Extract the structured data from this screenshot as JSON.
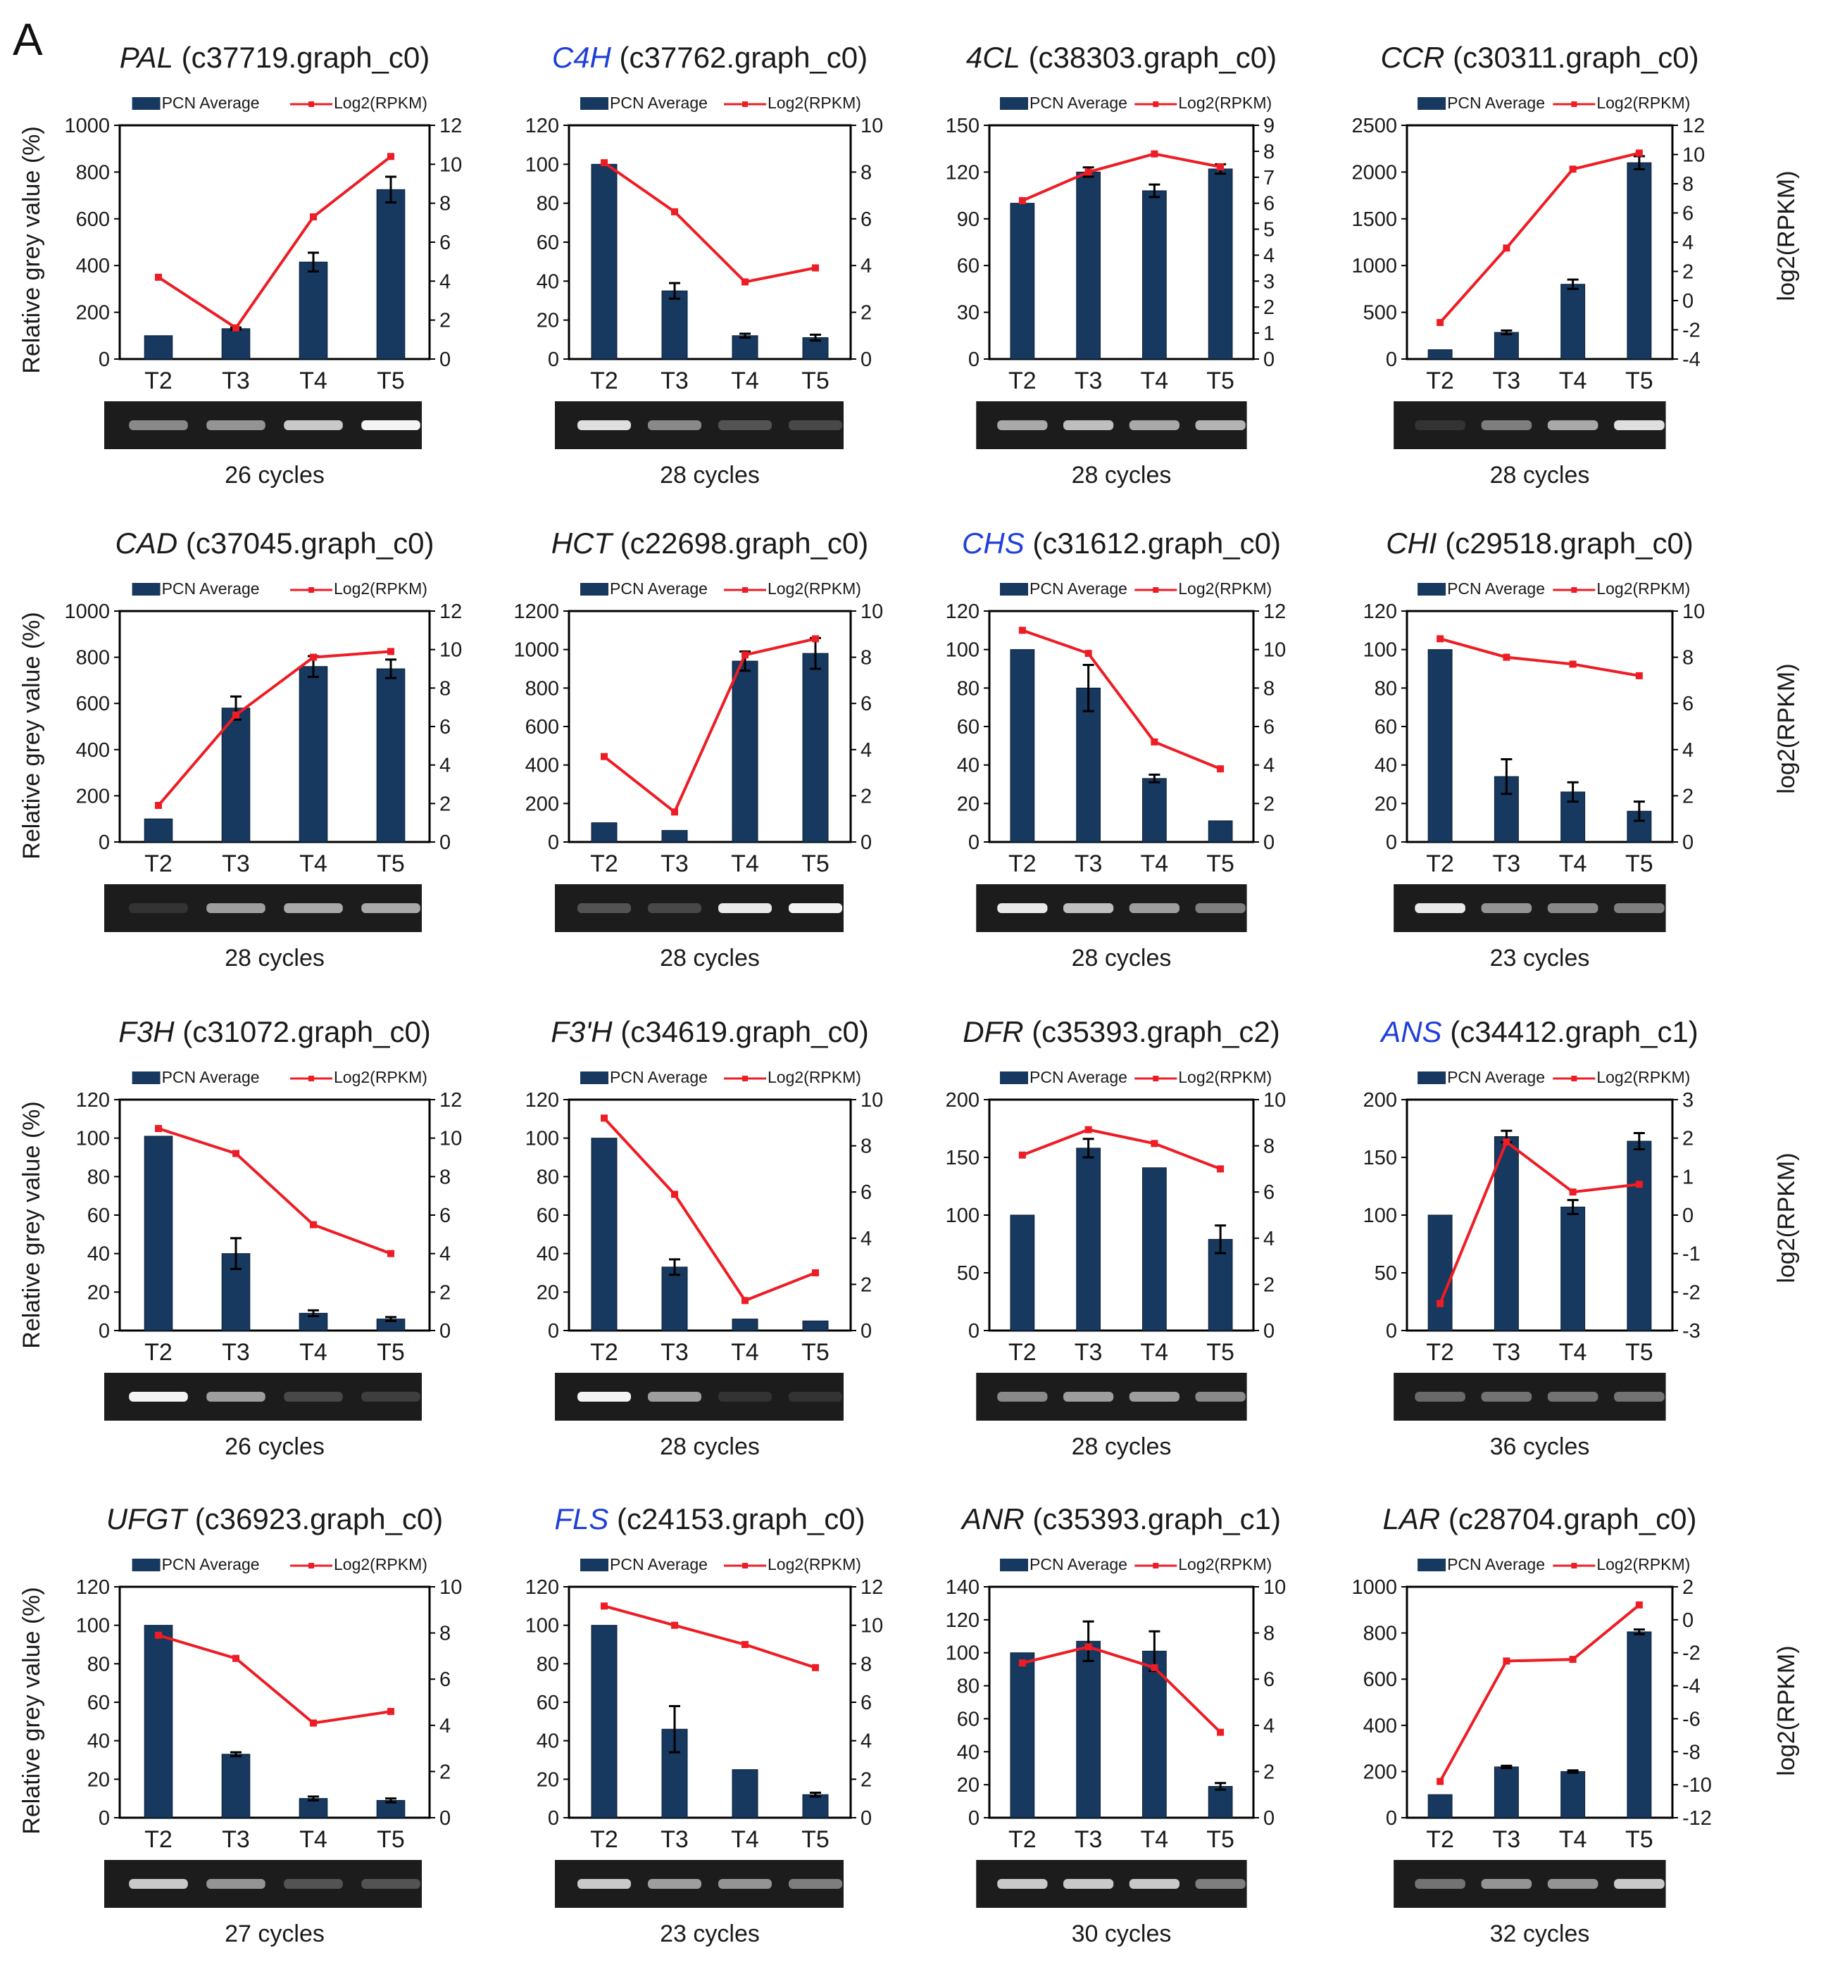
{
  "figure_label": "A",
  "legend": {
    "bar": "PCN Average",
    "line": "Log2(RPKM)"
  },
  "y_left_label": "Relative grey value (%)",
  "y_right_label": "log2(RPKM)",
  "colors": {
    "bar": "#17385f",
    "line": "#ee1c24",
    "blue_gene": "#1f3fd8",
    "frame": "#000000"
  },
  "chart_data": [
    {
      "type": "bar+line",
      "gene": "PAL",
      "id": "(c37719.graph_c0)",
      "gene_color": "black",
      "categories": [
        "T2",
        "T3",
        "T4",
        "T5"
      ],
      "bar_values": [
        100,
        130,
        415,
        725
      ],
      "bar_errors": [
        0,
        5,
        40,
        55
      ],
      "line_values": [
        4.2,
        1.6,
        7.3,
        10.4
      ],
      "ylim_left": [
        0,
        1000
      ],
      "yticks_left": [
        0,
        200,
        400,
        600,
        800,
        1000
      ],
      "ylim_right": [
        0,
        12
      ],
      "yticks_right": [
        0,
        2,
        4,
        6,
        8,
        10,
        12
      ],
      "cycles": "26 cycles",
      "gel_bands": [
        0.45,
        0.5,
        0.75,
        0.95
      ]
    },
    {
      "type": "bar+line",
      "gene": "C4H",
      "id": "(c37762.graph_c0)",
      "gene_color": "blue",
      "categories": [
        "T2",
        "T3",
        "T4",
        "T5"
      ],
      "bar_values": [
        100,
        35,
        12,
        11
      ],
      "bar_errors": [
        0,
        4,
        1,
        1.5
      ],
      "line_values": [
        8.4,
        6.3,
        3.3,
        3.9
      ],
      "ylim_left": [
        0,
        120
      ],
      "yticks_left": [
        0,
        20,
        40,
        60,
        80,
        100,
        120
      ],
      "ylim_right": [
        0,
        10
      ],
      "yticks_right": [
        0,
        2,
        4,
        6,
        8,
        10
      ],
      "cycles": "28 cycles",
      "gel_bands": [
        0.85,
        0.45,
        0.2,
        0.15
      ]
    },
    {
      "type": "bar+line",
      "gene": "4CL",
      "id": "(c38303.graph_c0)",
      "gene_color": "black",
      "categories": [
        "T2",
        "T3",
        "T4",
        "T5"
      ],
      "bar_values": [
        100,
        120,
        108,
        122
      ],
      "bar_errors": [
        0,
        3,
        4,
        3
      ],
      "line_values": [
        6.1,
        7.2,
        7.9,
        7.4
      ],
      "ylim_left": [
        0,
        150
      ],
      "yticks_left": [
        0,
        30,
        60,
        90,
        120,
        150
      ],
      "ylim_right": [
        0,
        9
      ],
      "yticks_right": [
        0,
        1,
        2,
        3,
        4,
        5,
        6,
        7,
        8,
        9
      ],
      "cycles": "28 cycles",
      "gel_bands": [
        0.6,
        0.7,
        0.6,
        0.65
      ]
    },
    {
      "type": "bar+line",
      "gene": "CCR",
      "id": "(c30311.graph_c0)",
      "gene_color": "black",
      "categories": [
        "T2",
        "T3",
        "T4",
        "T5"
      ],
      "bar_values": [
        100,
        285,
        800,
        2100
      ],
      "bar_errors": [
        0,
        20,
        50,
        70
      ],
      "line_values": [
        -1.5,
        3.6,
        9.0,
        10.1
      ],
      "ylim_left": [
        0,
        2500
      ],
      "yticks_left": [
        0,
        500,
        1000,
        1500,
        2000,
        2500
      ],
      "ylim_right": [
        -4,
        12
      ],
      "yticks_right": [
        -4,
        -2,
        0,
        2,
        4,
        6,
        8,
        10,
        12
      ],
      "cycles": "28 cycles",
      "gel_bands": [
        0.05,
        0.4,
        0.6,
        0.85
      ]
    },
    {
      "type": "bar+line",
      "gene": "CAD",
      "id": "(c37045.graph_c0)",
      "gene_color": "black",
      "categories": [
        "T2",
        "T3",
        "T4",
        "T5"
      ],
      "bar_values": [
        100,
        580,
        760,
        750
      ],
      "bar_errors": [
        0,
        50,
        45,
        40
      ],
      "line_values": [
        1.9,
        6.6,
        9.6,
        9.9
      ],
      "ylim_left": [
        0,
        1000
      ],
      "yticks_left": [
        0,
        200,
        400,
        600,
        800,
        1000
      ],
      "ylim_right": [
        0,
        12
      ],
      "yticks_right": [
        0,
        2,
        4,
        6,
        8,
        10,
        12
      ],
      "cycles": "28 cycles",
      "gel_bands": [
        0.05,
        0.55,
        0.6,
        0.6
      ]
    },
    {
      "type": "bar+line",
      "gene": "HCT",
      "id": "(c22698.graph_c0)",
      "gene_color": "black",
      "categories": [
        "T2",
        "T3",
        "T4",
        "T5"
      ],
      "bar_values": [
        100,
        60,
        940,
        980
      ],
      "bar_errors": [
        0,
        0,
        50,
        80
      ],
      "line_values": [
        3.7,
        1.3,
        8.1,
        8.8
      ],
      "ylim_left": [
        0,
        1200
      ],
      "yticks_left": [
        0,
        200,
        400,
        600,
        800,
        1000,
        1200
      ],
      "ylim_right": [
        0,
        10
      ],
      "yticks_right": [
        0,
        2,
        4,
        6,
        8,
        10
      ],
      "cycles": "28 cycles",
      "gel_bands": [
        0.2,
        0.15,
        0.9,
        0.95
      ]
    },
    {
      "type": "bar+line",
      "gene": "CHS",
      "id": "(c31612.graph_c0)",
      "gene_color": "blue",
      "categories": [
        "T2",
        "T3",
        "T4",
        "T5"
      ],
      "bar_values": [
        100,
        80,
        33,
        11
      ],
      "bar_errors": [
        0,
        12,
        2,
        0
      ],
      "line_values": [
        11.0,
        9.8,
        5.2,
        3.8
      ],
      "ylim_left": [
        0,
        120
      ],
      "yticks_left": [
        0,
        20,
        40,
        60,
        80,
        100,
        120
      ],
      "ylim_right": [
        0,
        12
      ],
      "yticks_right": [
        0,
        2,
        4,
        6,
        8,
        10,
        12
      ],
      "cycles": "28 cycles",
      "gel_bands": [
        0.9,
        0.7,
        0.55,
        0.4
      ]
    },
    {
      "type": "bar+line",
      "gene": "CHI",
      "id": "(c29518.graph_c0)",
      "gene_color": "black",
      "categories": [
        "T2",
        "T3",
        "T4",
        "T5"
      ],
      "bar_values": [
        100,
        34,
        26,
        16
      ],
      "bar_errors": [
        0,
        9,
        5,
        5
      ],
      "line_values": [
        8.8,
        8.0,
        7.7,
        7.2
      ],
      "ylim_left": [
        0,
        120
      ],
      "yticks_left": [
        0,
        20,
        40,
        60,
        80,
        100,
        120
      ],
      "ylim_right": [
        0,
        10
      ],
      "yticks_right": [
        0,
        2,
        4,
        6,
        8,
        10
      ],
      "cycles": "23 cycles",
      "gel_bands": [
        0.9,
        0.5,
        0.45,
        0.4
      ]
    },
    {
      "type": "bar+line",
      "gene": "F3H",
      "id": "(c31072.graph_c0)",
      "gene_color": "black",
      "categories": [
        "T2",
        "T3",
        "T4",
        "T5"
      ],
      "bar_values": [
        101,
        40,
        9,
        6
      ],
      "bar_errors": [
        0,
        8,
        1.5,
        1
      ],
      "line_values": [
        10.5,
        9.2,
        5.5,
        4.0
      ],
      "ylim_left": [
        0,
        120
      ],
      "yticks_left": [
        0,
        20,
        40,
        60,
        80,
        100,
        120
      ],
      "ylim_right": [
        0,
        12
      ],
      "yticks_right": [
        0,
        2,
        4,
        6,
        8,
        10,
        12
      ],
      "cycles": "26 cycles",
      "gel_bands": [
        0.95,
        0.55,
        0.15,
        0.1
      ]
    },
    {
      "type": "bar+line",
      "gene": "F3'H",
      "id": "(c34619.graph_c0)",
      "gene_color": "black",
      "categories": [
        "T2",
        "T3",
        "T4",
        "T5"
      ],
      "bar_values": [
        100,
        33,
        6,
        5
      ],
      "bar_errors": [
        0,
        4,
        0,
        0
      ],
      "line_values": [
        9.2,
        5.9,
        1.3,
        2.5
      ],
      "ylim_left": [
        0,
        120
      ],
      "yticks_left": [
        0,
        20,
        40,
        60,
        80,
        100,
        120
      ],
      "ylim_right": [
        0,
        10
      ],
      "yticks_right": [
        0,
        2,
        4,
        6,
        8,
        10
      ],
      "cycles": "28 cycles",
      "gel_bands": [
        0.95,
        0.55,
        0.05,
        0.05
      ]
    },
    {
      "type": "bar+line",
      "gene": "DFR",
      "id": "(c35393.graph_c2)",
      "gene_color": "black",
      "categories": [
        "T2",
        "T3",
        "T4",
        "T5"
      ],
      "bar_values": [
        100,
        158,
        141,
        79
      ],
      "bar_errors": [
        0,
        8,
        0,
        12
      ],
      "line_values": [
        7.6,
        8.7,
        8.1,
        7.0
      ],
      "ylim_left": [
        0,
        200
      ],
      "yticks_left": [
        0,
        50,
        100,
        150,
        200
      ],
      "ylim_right": [
        0,
        10
      ],
      "yticks_right": [
        0,
        2,
        4,
        6,
        8,
        10
      ],
      "cycles": "28 cycles",
      "gel_bands": [
        0.45,
        0.55,
        0.55,
        0.45
      ]
    },
    {
      "type": "bar+line",
      "gene": "ANS",
      "id": "(c34412.graph_c1)",
      "gene_color": "blue",
      "categories": [
        "T2",
        "T3",
        "T4",
        "T5"
      ],
      "bar_values": [
        100,
        168,
        107,
        164
      ],
      "bar_errors": [
        0,
        5,
        6,
        7
      ],
      "line_values": [
        -2.3,
        1.9,
        0.6,
        0.8
      ],
      "ylim_left": [
        0,
        200
      ],
      "yticks_left": [
        0,
        50,
        100,
        150,
        200
      ],
      "ylim_right": [
        -3,
        3
      ],
      "yticks_right": [
        -3,
        -2,
        -1,
        0,
        1,
        2,
        3
      ],
      "cycles": "36 cycles",
      "gel_bands": [
        0.3,
        0.35,
        0.35,
        0.35
      ]
    },
    {
      "type": "bar+line",
      "gene": "UFGT",
      "id": "(c36923.graph_c0)",
      "gene_color": "black",
      "categories": [
        "T2",
        "T3",
        "T4",
        "T5"
      ],
      "bar_values": [
        100,
        33,
        10,
        9
      ],
      "bar_errors": [
        0,
        1,
        1,
        1
      ],
      "line_values": [
        7.9,
        6.9,
        4.1,
        4.6
      ],
      "ylim_left": [
        0,
        120
      ],
      "yticks_left": [
        0,
        20,
        40,
        60,
        80,
        100,
        120
      ],
      "ylim_right": [
        0,
        10
      ],
      "yticks_right": [
        0,
        2,
        4,
        6,
        8,
        10
      ],
      "cycles": "27 cycles",
      "gel_bands": [
        0.75,
        0.5,
        0.2,
        0.2
      ]
    },
    {
      "type": "bar+line",
      "gene": "FLS",
      "id": "(c24153.graph_c0)",
      "gene_color": "blue",
      "categories": [
        "T2",
        "T3",
        "T4",
        "T5"
      ],
      "bar_values": [
        100,
        46,
        25,
        12
      ],
      "bar_errors": [
        0,
        12,
        0,
        1
      ],
      "line_values": [
        11.0,
        10.0,
        9.0,
        7.8
      ],
      "ylim_left": [
        0,
        120
      ],
      "yticks_left": [
        0,
        20,
        40,
        60,
        80,
        100,
        120
      ],
      "ylim_right": [
        0,
        12
      ],
      "yticks_right": [
        0,
        2,
        4,
        6,
        8,
        10,
        12
      ],
      "cycles": "23 cycles",
      "gel_bands": [
        0.75,
        0.55,
        0.5,
        0.4
      ]
    },
    {
      "type": "bar+line",
      "gene": "ANR",
      "id": "(c35393.graph_c1)",
      "gene_color": "black",
      "categories": [
        "T2",
        "T3",
        "T4",
        "T5"
      ],
      "bar_values": [
        100,
        107,
        101,
        19
      ],
      "bar_errors": [
        0,
        12,
        12,
        2
      ],
      "line_values": [
        6.7,
        7.4,
        6.5,
        3.7
      ],
      "ylim_left": [
        0,
        140
      ],
      "yticks_left": [
        0,
        20,
        40,
        60,
        80,
        100,
        120,
        140
      ],
      "ylim_right": [
        0,
        10
      ],
      "yticks_right": [
        0,
        2,
        4,
        6,
        8,
        10
      ],
      "cycles": "30 cycles",
      "gel_bands": [
        0.75,
        0.75,
        0.75,
        0.4
      ]
    },
    {
      "type": "bar+line",
      "gene": "LAR",
      "id": "(c28704.graph_c0)",
      "gene_color": "black",
      "categories": [
        "T2",
        "T3",
        "T4",
        "T5"
      ],
      "bar_values": [
        100,
        220,
        200,
        805
      ],
      "bar_errors": [
        0,
        5,
        5,
        10
      ],
      "line_values": [
        -9.8,
        -2.5,
        -2.4,
        0.9
      ],
      "ylim_left": [
        0,
        1000
      ],
      "yticks_left": [
        0,
        200,
        400,
        600,
        800,
        1000
      ],
      "ylim_right": [
        -12,
        2
      ],
      "yticks_right": [
        -12,
        -10,
        -8,
        -6,
        -4,
        -2,
        0,
        2
      ],
      "cycles": "32 cycles",
      "gel_bands": [
        0.35,
        0.5,
        0.5,
        0.75
      ]
    }
  ]
}
